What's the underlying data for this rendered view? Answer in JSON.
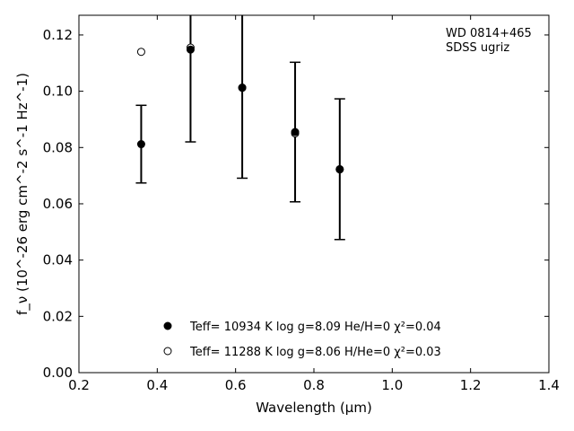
{
  "chart_data": {
    "type": "scatter",
    "annotation_lines": [
      "WD 0814+465",
      "SDSS ugriz"
    ],
    "xlabel": "Wavelength (μm)",
    "ylabel": "f_ν (10^-26 erg cm^-2 s^-1 Hz^-1)",
    "xlim": [
      0.2,
      1.4
    ],
    "ylim": [
      0.0,
      0.127
    ],
    "xticks": [
      0.2,
      0.4,
      0.6,
      0.8,
      1.0,
      1.2,
      1.4
    ],
    "xtick_labels": [
      "0.2",
      "0.4",
      "0.6",
      "0.8",
      "1.0",
      "1.2",
      "1.4"
    ],
    "yticks": [
      0.0,
      0.02,
      0.04,
      0.06,
      0.08,
      0.1,
      0.12
    ],
    "ytick_labels": [
      "0.00",
      "0.02",
      "0.04",
      "0.06",
      "0.08",
      "0.10",
      "0.12"
    ],
    "grid": false,
    "legend_position": "bottom-center",
    "observed": {
      "x": [
        0.359,
        0.485,
        0.617,
        0.752,
        0.866
      ],
      "y": [
        0.0812,
        0.1148,
        0.1013,
        0.0855,
        0.0723
      ],
      "yerr": [
        0.0138,
        0.0328,
        0.0322,
        0.0248,
        0.025
      ],
      "marker": "filled-circle"
    },
    "series": [
      {
        "name": "Teff= 10934 K  log g=8.09  He/H=0  χ²=0.04",
        "marker": "filled-circle",
        "x": [
          0.359,
          0.485,
          0.617,
          0.752,
          0.866
        ],
        "y": [
          0.0812,
          0.1148,
          0.1013,
          0.0855,
          0.0723
        ]
      },
      {
        "name": "Teff= 11288 K  log g=8.06  H/He=0  χ²=0.03",
        "marker": "open-circle",
        "x": [
          0.359,
          0.485,
          0.617,
          0.752,
          0.866
        ],
        "y": [
          0.114,
          0.1155,
          0.1012,
          0.085,
          0.0722
        ]
      }
    ],
    "colors": {
      "axis": "#000000",
      "marker": "#000000",
      "background": "#ffffff"
    }
  }
}
